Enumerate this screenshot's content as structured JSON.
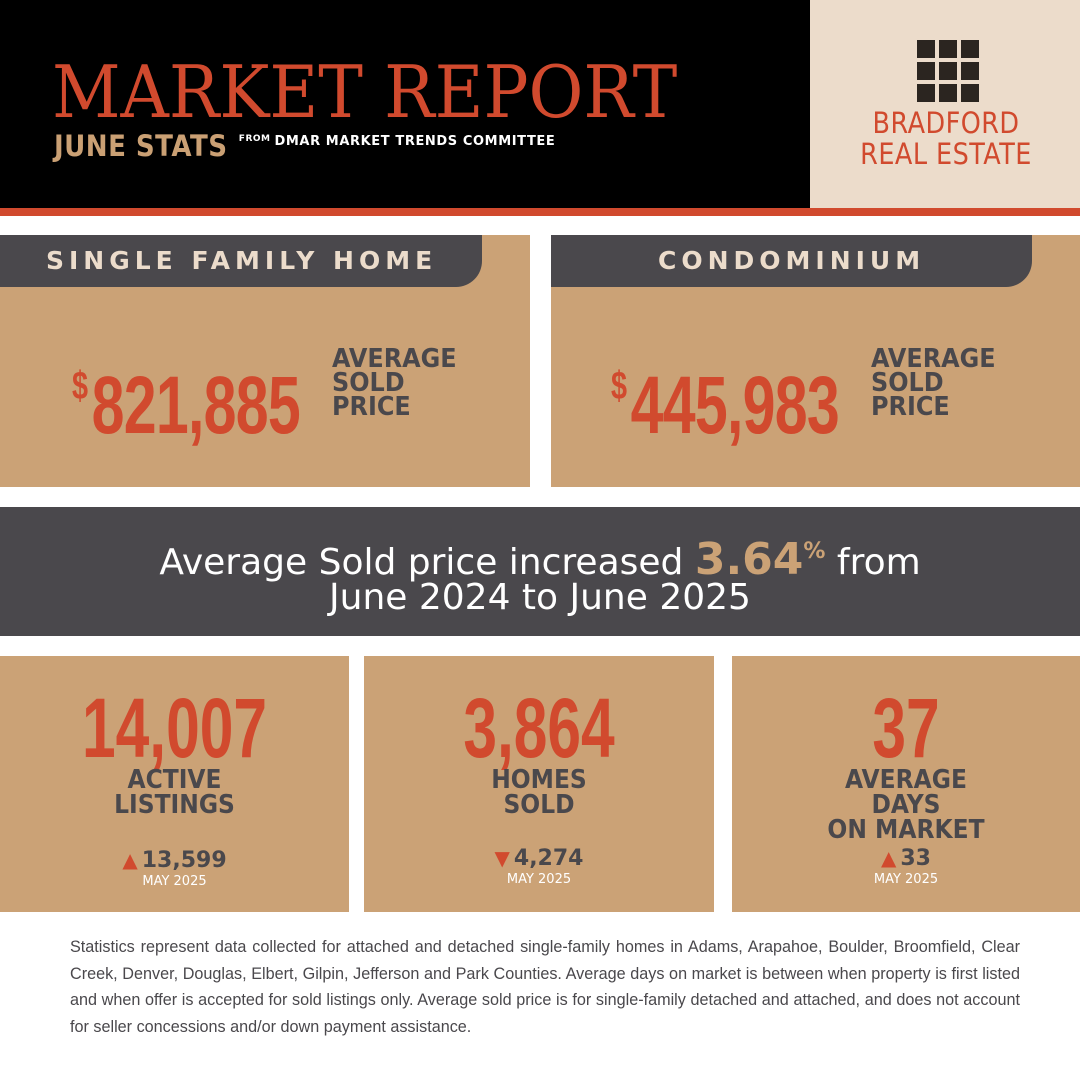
{
  "header": {
    "title": "MARKET REPORT",
    "subtitle": "JUNE STATS",
    "from_label": "FROM",
    "source": "DMAR MARKET TRENDS COMMITTEE",
    "logo_line1": "BRADFORD",
    "logo_line2": "REAL ESTATE",
    "logo_icon": "window-grid-icon"
  },
  "cards": [
    {
      "tab": "SINGLE FAMILY HOME",
      "currency": "$",
      "price": "821,885",
      "label_lines": [
        "AVERAGE",
        "SOLD",
        "PRICE"
      ]
    },
    {
      "tab": "CONDOMINIUM",
      "currency": "$",
      "price": "445,983",
      "label_lines": [
        "AVERAGE",
        "SOLD",
        "PRICE"
      ]
    }
  ],
  "banner": {
    "before": "Average Sold price increased ",
    "value": "3.64",
    "unit": "%",
    "after": " from",
    "line2": "June 2024 to June 2025"
  },
  "stats": [
    {
      "value": "14,007",
      "label_lines": [
        "ACTIVE",
        "LISTINGS"
      ],
      "trend": "up",
      "arrow": "▲",
      "previous": "13,599",
      "month": "MAY 2025"
    },
    {
      "value": "3,864",
      "label_lines": [
        "HOMES",
        "SOLD"
      ],
      "trend": "down",
      "arrow": "▼",
      "previous": "4,274",
      "month": "MAY 2025"
    },
    {
      "value": "37",
      "label_lines": [
        "AVERAGE",
        "DAYS",
        "ON MARKET"
      ],
      "trend": "up",
      "arrow": "▲",
      "previous": "33",
      "month": "MAY 2025"
    }
  ],
  "footnote": "Statistics represent data collected for attached and detached single-family homes in Adams, Arapahoe, Boulder, Broomfield, Clear Creek, Denver, Douglas, Elbert, Gilpin, Jefferson and Park Counties. Average days on market is between when property is first listed and when offer is accepted for sold listings only. Average sold price is for single-family detached and attached, and does not account for seller concessions and/or down payment assistance.",
  "colors": {
    "accent": "#d14a2e",
    "tan": "#cba276",
    "charcoal": "#4a484c",
    "cream": "#ecdccb"
  }
}
